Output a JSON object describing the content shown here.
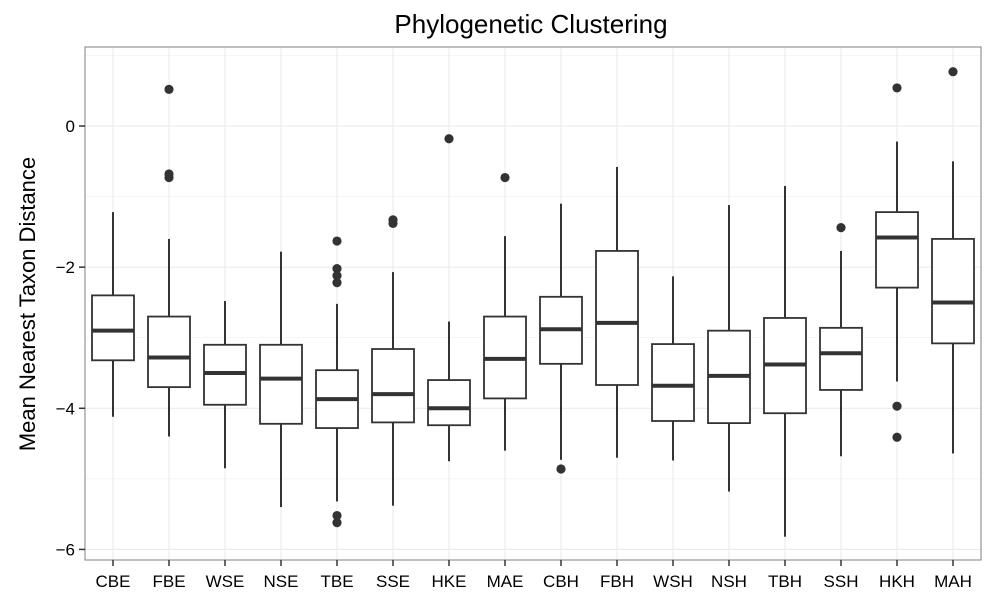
{
  "chart_data": {
    "type": "box",
    "title": "Phylogenetic Clustering",
    "xlabel": "",
    "ylabel": "Mean Nearest Taxon Distance",
    "ylim": [
      -6.15,
      1.12
    ],
    "yticks": [
      0,
      -2,
      -4,
      -6
    ],
    "ytick_labels": [
      "0",
      "−2",
      "−4",
      "−6"
    ],
    "grid": true,
    "categories": [
      "CBE",
      "FBE",
      "WSE",
      "NSE",
      "TBE",
      "SSE",
      "HKE",
      "MAE",
      "CBH",
      "FBH",
      "WSH",
      "NSH",
      "TBH",
      "SSH",
      "HKH",
      "MAH"
    ],
    "boxes": [
      {
        "whisker_low": -4.12,
        "q1": -3.32,
        "median": -2.9,
        "q3": -2.4,
        "whisker_high": -1.22,
        "outliers": []
      },
      {
        "whisker_low": -4.4,
        "q1": -3.7,
        "median": -3.28,
        "q3": -2.7,
        "whisker_high": -1.6,
        "outliers": [
          0.52,
          -0.68,
          -0.73
        ]
      },
      {
        "whisker_low": -4.85,
        "q1": -3.95,
        "median": -3.5,
        "q3": -3.1,
        "whisker_high": -2.48,
        "outliers": []
      },
      {
        "whisker_low": -5.4,
        "q1": -4.22,
        "median": -3.58,
        "q3": -3.1,
        "whisker_high": -1.78,
        "outliers": []
      },
      {
        "whisker_low": -5.32,
        "q1": -4.28,
        "median": -3.87,
        "q3": -3.46,
        "whisker_high": -2.52,
        "outliers": [
          -1.63,
          -2.02,
          -2.12,
          -2.22,
          -5.52,
          -5.62
        ]
      },
      {
        "whisker_low": -5.38,
        "q1": -4.2,
        "median": -3.8,
        "q3": -3.16,
        "whisker_high": -2.07,
        "outliers": [
          -1.33,
          -1.38
        ]
      },
      {
        "whisker_low": -4.75,
        "q1": -4.24,
        "median": -4.0,
        "q3": -3.6,
        "whisker_high": -2.77,
        "outliers": [
          -0.18
        ]
      },
      {
        "whisker_low": -4.6,
        "q1": -3.86,
        "median": -3.3,
        "q3": -2.7,
        "whisker_high": -1.56,
        "outliers": [
          -0.73
        ]
      },
      {
        "whisker_low": -4.73,
        "q1": -3.37,
        "median": -2.88,
        "q3": -2.42,
        "whisker_high": -1.1,
        "outliers": [
          -4.86
        ]
      },
      {
        "whisker_low": -4.7,
        "q1": -3.67,
        "median": -2.79,
        "q3": -1.77,
        "whisker_high": -0.58,
        "outliers": []
      },
      {
        "whisker_low": -4.74,
        "q1": -4.18,
        "median": -3.68,
        "q3": -3.09,
        "whisker_high": -2.13,
        "outliers": []
      },
      {
        "whisker_low": -5.18,
        "q1": -4.21,
        "median": -3.54,
        "q3": -2.9,
        "whisker_high": -1.12,
        "outliers": []
      },
      {
        "whisker_low": -5.82,
        "q1": -4.07,
        "median": -3.38,
        "q3": -2.72,
        "whisker_high": -0.85,
        "outliers": []
      },
      {
        "whisker_low": -4.68,
        "q1": -3.74,
        "median": -3.22,
        "q3": -2.86,
        "whisker_high": -1.77,
        "outliers": [
          -1.44
        ]
      },
      {
        "whisker_low": -3.62,
        "q1": -2.29,
        "median": -1.58,
        "q3": -1.22,
        "whisker_high": -0.22,
        "outliers": [
          0.54,
          -3.97,
          -4.41
        ]
      },
      {
        "whisker_low": -4.64,
        "q1": -3.08,
        "median": -2.5,
        "q3": -1.6,
        "whisker_high": -0.5,
        "outliers": [
          0.77
        ]
      }
    ],
    "colors": {
      "box_stroke": "#333333",
      "box_fill": "#ffffff",
      "grid": "#ebebeb",
      "panel_border": "#7f7f7f",
      "outlier": "#333333"
    }
  }
}
